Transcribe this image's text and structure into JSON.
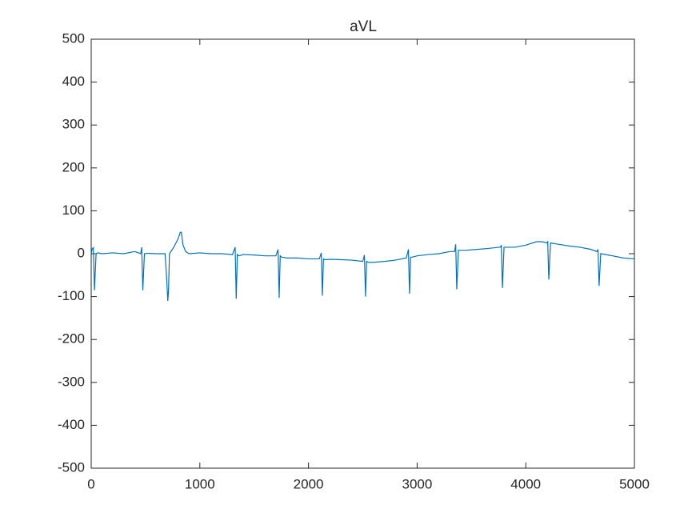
{
  "chart_data": {
    "type": "line",
    "title": "aVL",
    "color": "#0072bd",
    "xlim": [
      0,
      5000
    ],
    "xticks": [
      0,
      1000,
      2000,
      3000,
      4000,
      5000
    ],
    "ylim": [
      -500,
      500
    ],
    "yticks": [
      -500,
      -400,
      -300,
      -200,
      -100,
      0,
      100,
      200,
      300,
      400,
      500
    ],
    "x": [
      0,
      10,
      20,
      30,
      45,
      60,
      100,
      200,
      300,
      400,
      455,
      465,
      475,
      490,
      520,
      600,
      680,
      695,
      705,
      712,
      720,
      760,
      800,
      820,
      830,
      845,
      870,
      900,
      1000,
      1100,
      1200,
      1300,
      1325,
      1335,
      1345,
      1360,
      1400,
      1500,
      1600,
      1700,
      1720,
      1730,
      1740,
      1755,
      1800,
      1900,
      2000,
      2100,
      2118,
      2128,
      2138,
      2152,
      2200,
      2300,
      2400,
      2500,
      2515,
      2525,
      2535,
      2550,
      2600,
      2700,
      2800,
      2900,
      2920,
      2930,
      2940,
      2955,
      3000,
      3100,
      3200,
      3300,
      3345,
      3355,
      3365,
      3380,
      3450,
      3550,
      3650,
      3750,
      3765,
      3775,
      3785,
      3800,
      3900,
      4000,
      4100,
      4150,
      4192,
      4202,
      4212,
      4228,
      4300,
      4400,
      4500,
      4600,
      4655,
      4665,
      4675,
      4690,
      4800,
      4900,
      5000
    ],
    "values": [
      0,
      12,
      14,
      -85,
      0,
      2,
      0,
      2,
      0,
      5,
      0,
      15,
      -85,
      0,
      1,
      0,
      0,
      -60,
      -110,
      -85,
      0,
      15,
      35,
      50,
      50,
      20,
      5,
      0,
      2,
      0,
      0,
      -2,
      15,
      -105,
      -2,
      -5,
      -2,
      -3,
      -5,
      -5,
      10,
      -103,
      -5,
      -8,
      -10,
      -10,
      -12,
      -12,
      2,
      -98,
      -12,
      -14,
      -13,
      -14,
      -15,
      -18,
      -3,
      -100,
      -18,
      -20,
      -20,
      -18,
      -15,
      -10,
      10,
      -93,
      -8,
      -8,
      -5,
      -2,
      0,
      5,
      5,
      22,
      -83,
      8,
      8,
      10,
      12,
      15,
      15,
      20,
      -80,
      15,
      15,
      20,
      28,
      28,
      25,
      28,
      -60,
      25,
      22,
      18,
      15,
      10,
      5,
      10,
      -75,
      0,
      -5,
      -10,
      -12
    ]
  }
}
